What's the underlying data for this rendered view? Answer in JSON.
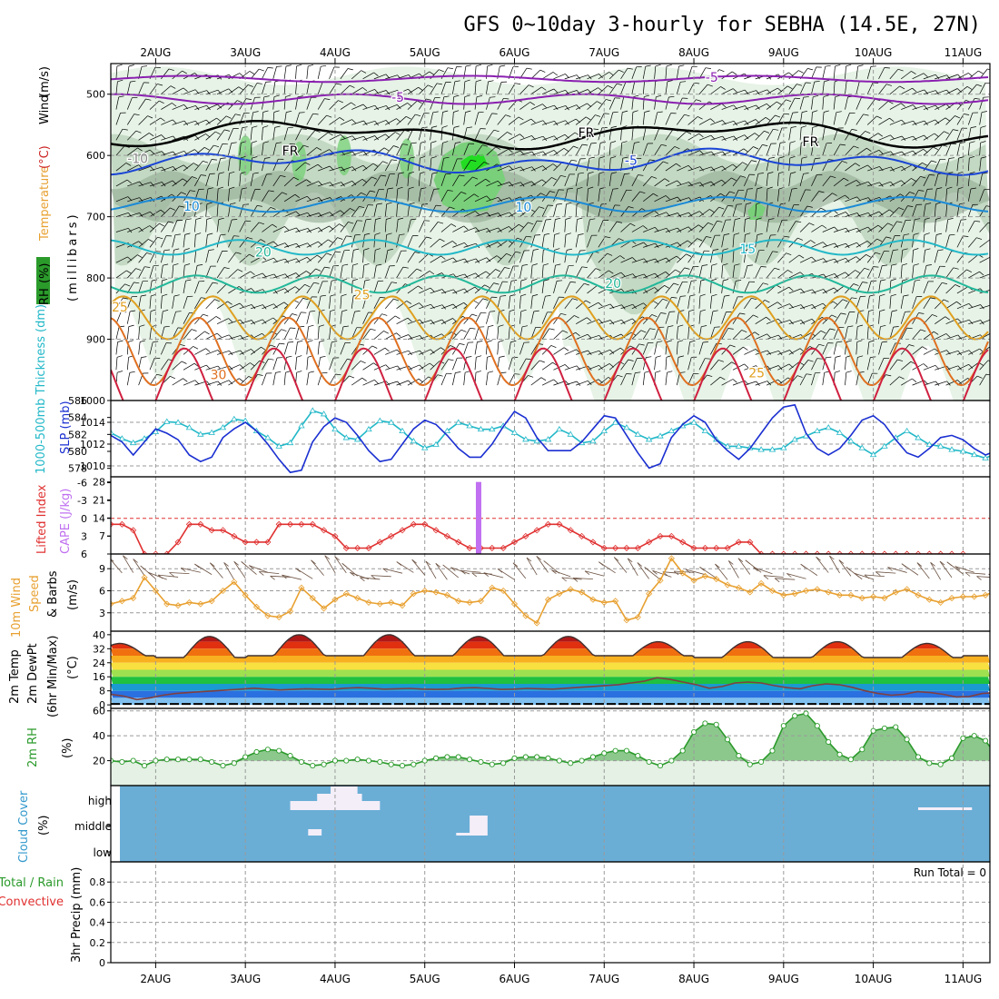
{
  "title": "GFS 0~10day 3-hourly for SEBHA (14.5E, 27N)",
  "colors": {
    "frame": "#000000",
    "grid": "#9a9a9a",
    "rh_light": "#e6f3e6",
    "rh_mid": "#bcd3bc",
    "rh_dark": "#93aa93",
    "rh_green": "#7ad07a",
    "rh_bright": "#22dd22",
    "slp": "#1a2fd1",
    "thickness": "#22b8c8",
    "lifted": "#e03030",
    "cape": "#c070f0",
    "wind10": "#e8a030",
    "barb": "#6a5040",
    "rh2m": "#2a9a2a",
    "cloud_bg": "#6aaed6",
    "cloud_fg": "#f4eef8"
  },
  "x_axis": {
    "dates": [
      "2AUG",
      "3AUG",
      "4AUG",
      "5AUG",
      "6AUG",
      "7AUG",
      "8AUG",
      "9AUG",
      "10AUG",
      "11AUG"
    ],
    "start_day": 1.5,
    "end_day": 11.3
  },
  "panels": {
    "upper_air": {
      "ylabel_parts": [
        "Wind",
        "(m/s)",
        "Temperature",
        "(°C)",
        "RH",
        "(%)"
      ],
      "ylabel2": "(millibars)",
      "yticks": [
        500,
        600,
        700,
        800,
        900,
        1000
      ],
      "ylim": [
        1000,
        450
      ],
      "temp_labels": [
        "-5",
        "-5",
        "FR",
        "FR",
        "FR",
        "-5",
        "-10",
        "10",
        "10",
        "15",
        "20",
        "20",
        "25",
        "25",
        "30",
        "25"
      ]
    },
    "slp_thickness": {
      "ylabel_thick": "1000-500mb Thickness (dm)",
      "ylabel_slp": "SLP (mb)",
      "thick_ticks": [
        "586",
        "584",
        "582",
        "580",
        "578"
      ],
      "slp_ticks": [
        "1014",
        "1012",
        "1010"
      ],
      "thickness_ylim": [
        577,
        586
      ],
      "slp_ylim": [
        1009,
        1016
      ]
    },
    "stability": {
      "ylabel_li": "Lifted Index",
      "ylabel_cape": "CAPE (J/kg)",
      "li_ticks": [
        "-6",
        "-3",
        "0",
        "3",
        "6"
      ],
      "cape_ticks": [
        "28",
        "21",
        "14",
        "7"
      ]
    },
    "wind10m": {
      "ylabel": [
        "10m Wind",
        "Speed",
        "& Barbs"
      ],
      "unit": "(m/s)",
      "yticks": [
        "9",
        "6",
        "3"
      ]
    },
    "temp2m": {
      "ylabel": [
        "2m Temp",
        "2m DewPt",
        "(6hr Min/Max)"
      ],
      "unit": "(°C)",
      "yticks": [
        "40",
        "32",
        "24",
        "16",
        "8",
        "0"
      ]
    },
    "rh2m": {
      "ylabel": "2m RH",
      "unit": "(%)",
      "yticks": [
        "60",
        "40",
        "20"
      ]
    },
    "cloud": {
      "ylabel": "Cloud Cover",
      "unit": "(%)",
      "levels": [
        "high",
        "middle",
        "low"
      ]
    },
    "precip": {
      "ylabel_total": "Total / Rain",
      "ylabel_conv": "Convective",
      "ylabel_main": "3hr Precip (mm)",
      "yticks": [
        "0.8",
        "0.6",
        "0.4",
        "0.2",
        "0"
      ],
      "run_total": "Run Total = 0"
    }
  },
  "chart_data": [
    {
      "type": "line",
      "name": "SLP",
      "x_start_day": 1.5,
      "step_hours": 3,
      "ylabel": "SLP (mb)",
      "values": [
        1012.8,
        1012.2,
        1011.0,
        1012.2,
        1013.4,
        1013.0,
        1012.4,
        1011.0,
        1010.4,
        1010.8,
        1012.6,
        1013.4,
        1014.0,
        1013.2,
        1012.0,
        1010.6,
        1009.4,
        1009.6,
        1012.2,
        1013.6,
        1014.4,
        1014.0,
        1012.8,
        1011.4,
        1010.4,
        1010.6,
        1012.0,
        1013.4,
        1014.2,
        1013.8,
        1012.8,
        1011.6,
        1010.8,
        1010.8,
        1012.0,
        1013.6,
        1015.0,
        1014.4,
        1012.6,
        1011.4,
        1011.4,
        1011.4,
        1012.2,
        1013.4,
        1014.6,
        1014.4,
        1012.8,
        1011.2,
        1009.8,
        1010.2,
        1012.6,
        1013.8,
        1014.6,
        1014.0,
        1012.4,
        1011.4,
        1010.6,
        1011.6,
        1013.0,
        1014.4,
        1015.4,
        1015.6,
        1013.0,
        1011.6,
        1011.0,
        1011.6,
        1012.8,
        1014.2,
        1014.6,
        1013.8,
        1012.4,
        1011.2,
        1010.8,
        1011.6,
        1012.6,
        1012.8,
        1012.4,
        1011.6,
        1011.0,
        1011.4,
        1011.6
      ]
    },
    {
      "type": "line",
      "name": "Thickness",
      "x_start_day": 1.5,
      "step_hours": 3,
      "ylabel": "1000-500mb Thickness (dm)",
      "values": [
        582.2,
        581.5,
        581.0,
        581.5,
        582.3,
        583.5,
        583.4,
        582.8,
        582.0,
        582.2,
        582.8,
        583.8,
        583.6,
        582.4,
        581.6,
        580.6,
        581.0,
        583.0,
        584.8,
        584.4,
        582.6,
        581.6,
        581.4,
        582.6,
        583.6,
        583.4,
        582.4,
        581.2,
        580.4,
        580.8,
        582.4,
        583.4,
        583.0,
        582.6,
        582.6,
        583.0,
        582.2,
        581.4,
        581.2,
        581.4,
        582.6,
        582.0,
        581.0,
        581.2,
        582.4,
        583.4,
        582.8,
        582.0,
        581.4,
        581.8,
        582.4,
        583.0,
        583.4,
        582.4,
        581.4,
        580.6,
        580.6,
        580.4,
        580.2,
        580.2,
        580.4,
        581.4,
        581.8,
        582.4,
        582.8,
        582.2,
        581.2,
        580.4,
        579.6,
        580.6,
        581.6,
        582.4,
        581.6,
        580.8,
        580.6,
        580.2,
        580.0,
        579.6,
        579.2,
        579.8,
        579.2
      ]
    },
    {
      "type": "line",
      "name": "10m Wind Speed",
      "x_start_day": 1.5,
      "step_hours": 3,
      "ylabel": "10m Wind Speed (m/s)",
      "values": [
        4.2,
        4.6,
        5.0,
        7.8,
        6.0,
        4.2,
        4.0,
        4.4,
        4.2,
        4.6,
        6.0,
        7.2,
        5.4,
        3.8,
        2.6,
        2.4,
        3.2,
        6.4,
        5.0,
        3.6,
        4.8,
        5.6,
        5.0,
        4.4,
        4.2,
        4.4,
        4.0,
        5.6,
        6.0,
        5.8,
        5.4,
        4.6,
        4.4,
        4.6,
        6.4,
        6.0,
        4.2,
        2.6,
        1.6,
        4.8,
        5.6,
        6.2,
        5.8,
        4.8,
        4.4,
        4.6,
        2.0,
        2.4,
        5.6,
        7.4,
        10.4,
        8.4,
        7.4,
        8.0,
        7.6,
        6.8,
        6.4,
        5.8,
        7.0,
        6.0,
        5.4,
        5.6,
        6.0,
        6.2,
        5.8,
        5.4,
        5.4,
        5.0,
        5.2,
        5.0,
        5.8,
        6.2,
        5.4,
        4.8,
        4.4,
        5.0,
        5.2,
        5.2,
        5.4,
        6.0,
        5.4,
        2.2,
        5.0,
        5.8,
        5.8,
        5.4
      ]
    },
    {
      "type": "area",
      "name": "2m Temp",
      "x_start_day": 1.5,
      "ylabel": "2m Temp (°C)",
      "daily_max": [
        35,
        39,
        40,
        40,
        39,
        39,
        36,
        36,
        36,
        35,
        36
      ],
      "daily_min": [
        28,
        27,
        28,
        28,
        28,
        28,
        28,
        27,
        27,
        27,
        28
      ]
    },
    {
      "type": "line",
      "name": "2m DewPt",
      "x_start_day": 1.5,
      "step_hours": 3,
      "ylabel": "2m DewPt (°C)",
      "values": [
        6.0,
        5.0,
        3.0,
        4.0,
        5.5,
        6.5,
        7.0,
        7.5,
        8.0,
        8.5,
        9.0,
        9.5,
        9.0,
        8.5,
        8.8,
        9.2,
        9.0,
        8.8,
        9.5,
        9.8,
        9.5,
        9.0,
        9.2,
        9.4,
        9.0,
        8.8,
        9.0,
        9.6,
        9.8,
        9.4,
        8.8,
        9.0,
        9.4,
        9.2,
        9.0,
        9.5,
        10.0,
        10.5,
        11.0,
        11.5,
        12.5,
        13.5,
        15.5,
        14.5,
        13.0,
        11.5,
        9.5,
        10.5,
        12.5,
        13.0,
        12.5,
        11.0,
        9.8,
        9.2,
        11.0,
        12.0,
        11.5,
        10.0,
        8.0,
        6.5,
        5.5,
        6.0,
        7.5,
        7.0,
        6.0,
        4.5,
        4.8,
        6.5,
        7.0
      ]
    },
    {
      "type": "area",
      "name": "2m RH",
      "x_start_day": 1.5,
      "step_hours": 3,
      "ylabel": "2m RH (%)",
      "values": [
        20,
        19,
        20,
        16,
        20,
        21,
        21,
        21,
        21,
        19,
        16,
        18,
        23,
        27,
        29,
        28,
        24,
        19,
        16,
        17,
        20,
        20,
        21,
        20,
        19,
        17,
        16,
        17,
        20,
        22,
        23,
        23,
        21,
        19,
        17,
        18,
        22,
        23,
        23,
        22,
        20,
        18,
        20,
        23,
        26,
        28,
        28,
        24,
        19,
        16,
        20,
        28,
        43,
        50,
        49,
        37,
        24,
        17,
        19,
        28,
        48,
        56,
        58,
        48,
        35,
        25,
        21,
        29,
        44,
        46,
        47,
        37,
        23,
        18,
        17,
        22,
        38,
        40,
        36,
        24,
        19,
        18,
        20,
        22,
        23,
        23
      ]
    },
    {
      "type": "line",
      "name": "Lifted Index",
      "x_start_day": 1.5,
      "step_hours": 3,
      "ylabel": "Lifted Index",
      "values": [
        1,
        1,
        2,
        6,
        6,
        6,
        4,
        1,
        1,
        2,
        2,
        3,
        4,
        4,
        4,
        1,
        1,
        1,
        1,
        2,
        3,
        5,
        5,
        5,
        4,
        3,
        2,
        1,
        1,
        2,
        3,
        4,
        5,
        5,
        5,
        5,
        4,
        3,
        2,
        1,
        1,
        2,
        3,
        4,
        5,
        5,
        5,
        5,
        4,
        3,
        3,
        4,
        5,
        5,
        5,
        5,
        4,
        4,
        6,
        6,
        6,
        6,
        6,
        6,
        6,
        6,
        6,
        6,
        6,
        6,
        6,
        6,
        6,
        6,
        6,
        6,
        6
      ]
    }
  ]
}
